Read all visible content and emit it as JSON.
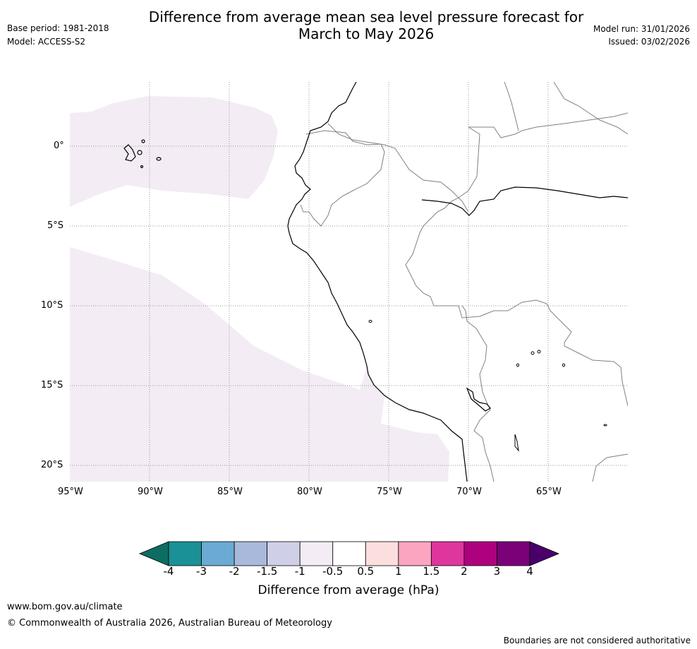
{
  "header": {
    "title_line1": "Difference from average mean sea level pressure forecast for",
    "title_line2": "March to May 2026",
    "base_period": "Base period: 1981-2018",
    "model": "Model: ACCESS-S2",
    "model_run": "Model run: 31/01/2026",
    "issued": "Issued: 03/02/2026"
  },
  "map": {
    "lon_range": [
      -95,
      -60
    ],
    "lat_range": [
      -21,
      4
    ],
    "lat_ticks": [
      "0°",
      "5°S",
      "10°S",
      "15°S",
      "20°S"
    ],
    "lon_ticks": [
      "95°W",
      "90°W",
      "85°W",
      "80°W",
      "75°W",
      "70°W",
      "65°W"
    ],
    "region": "Peru and eastern Pacific",
    "anomaly_fill_color": "#f3ecf5",
    "coast_color": "#000000",
    "border_color": "#808080"
  },
  "colorbar": {
    "title": "Difference from average (hPa)",
    "labels": [
      "-4",
      "-3",
      "-2",
      "-1.5",
      "-1",
      "-0.5",
      "0.5",
      "1",
      "1.5",
      "2",
      "3",
      "4"
    ],
    "colors": [
      "#0d6d62",
      "#1a9196",
      "#6aaad3",
      "#a9b9db",
      "#cfd0e7",
      "#f3ecf5",
      "#ffffff",
      "#fddede",
      "#fba5c0",
      "#de369d",
      "#ae017e",
      "#7a0177",
      "#49006a"
    ]
  },
  "footer": {
    "url": "www.bom.gov.au/climate",
    "copyright": "© Commonwealth of Australia 2026, Australian Bureau of Meteorology",
    "disclaimer": "Boundaries are not considered authoritative"
  }
}
